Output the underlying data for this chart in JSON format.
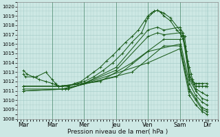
{
  "title": "",
  "xlabel": "Pression niveau de la mer( hPa )",
  "ylabel": "",
  "ylim": [
    1008,
    1020.5
  ],
  "xlim": [
    -0.1,
    6.2
  ],
  "yticks": [
    1008,
    1009,
    1010,
    1011,
    1012,
    1013,
    1014,
    1015,
    1016,
    1017,
    1018,
    1019,
    1020
  ],
  "xtick_labels": [
    "Mar",
    "Mar",
    "Mer",
    "Jeu",
    "Ven",
    "Sam",
    "Dir"
  ],
  "xtick_positions": [
    0.1,
    1.0,
    2.0,
    3.0,
    4.0,
    5.0,
    5.85
  ],
  "bg_color": "#cde8e4",
  "grid_color": "#a0c8c4",
  "line_color": "#1a5c1a",
  "series": [
    [
      0.1,
      1012.8,
      0.15,
      1012.5,
      0.5,
      1012.5,
      0.8,
      1013.0,
      1.0,
      1012.2,
      1.1,
      1011.8,
      1.2,
      1011.5,
      1.3,
      1011.5,
      1.5,
      1011.5,
      1.7,
      1011.8,
      1.9,
      1012.0,
      2.1,
      1012.5,
      2.3,
      1013.0,
      2.5,
      1013.5,
      2.7,
      1014.2,
      2.9,
      1014.8,
      3.1,
      1015.5,
      3.3,
      1016.2,
      3.5,
      1016.8,
      3.7,
      1017.5,
      3.9,
      1018.5,
      4.0,
      1019.0,
      4.1,
      1019.3,
      4.2,
      1019.5,
      4.3,
      1019.6,
      4.4,
      1019.4,
      4.5,
      1019.0,
      4.7,
      1018.5,
      4.9,
      1017.5,
      5.0,
      1017.2,
      5.05,
      1016.8,
      5.1,
      1016.5,
      5.15,
      1015.8,
      5.2,
      1015.2,
      5.25,
      1014.2,
      5.3,
      1013.5,
      5.35,
      1012.8,
      5.4,
      1012.2,
      5.45,
      1011.8,
      5.5,
      1011.5,
      5.6,
      1011.5,
      5.7,
      1011.5,
      5.8,
      1011.5,
      5.85,
      1011.5
    ],
    [
      0.1,
      1013.2,
      0.2,
      1012.8,
      0.4,
      1012.5,
      0.6,
      1012.2,
      0.8,
      1012.0,
      1.0,
      1011.8,
      1.2,
      1011.5,
      1.5,
      1011.5,
      1.8,
      1011.8,
      2.0,
      1012.0,
      2.3,
      1012.5,
      2.6,
      1013.2,
      2.9,
      1014.0,
      3.2,
      1015.0,
      3.5,
      1016.2,
      3.8,
      1017.2,
      4.0,
      1018.8,
      4.2,
      1019.5,
      4.3,
      1019.6,
      4.5,
      1019.3,
      4.7,
      1018.8,
      5.0,
      1017.5,
      5.1,
      1017.0,
      5.15,
      1016.8,
      5.3,
      1012.8,
      5.4,
      1012.0,
      5.5,
      1011.8,
      5.6,
      1011.8,
      5.7,
      1011.8,
      5.85,
      1011.8
    ],
    [
      0.1,
      1011.5,
      1.2,
      1011.5,
      2.0,
      1011.8,
      3.0,
      1013.5,
      4.0,
      1017.5,
      4.3,
      1017.8,
      4.5,
      1017.5,
      5.0,
      1017.8,
      5.1,
      1017.2,
      5.3,
      1012.5,
      5.5,
      1011.2,
      5.7,
      1010.8,
      5.85,
      1010.5
    ],
    [
      0.1,
      1011.5,
      1.2,
      1011.5,
      2.0,
      1011.8,
      3.0,
      1013.2,
      4.0,
      1016.8,
      4.3,
      1017.2,
      4.5,
      1017.0,
      5.0,
      1017.2,
      5.1,
      1016.8,
      5.3,
      1012.2,
      5.5,
      1011.0,
      5.7,
      1010.2,
      5.85,
      1010.0
    ],
    [
      0.1,
      1011.5,
      1.3,
      1011.5,
      2.5,
      1012.0,
      3.5,
      1014.0,
      4.5,
      1016.5,
      5.0,
      1016.5,
      5.3,
      1011.8,
      5.5,
      1010.5,
      5.7,
      1009.8,
      5.85,
      1009.5
    ],
    [
      0.1,
      1011.2,
      1.3,
      1011.2,
      3.0,
      1012.5,
      4.0,
      1015.2,
      5.0,
      1016.0,
      5.3,
      1011.2,
      5.5,
      1010.2,
      5.7,
      1009.2,
      5.85,
      1009.0
    ],
    [
      0.1,
      1011.0,
      1.4,
      1011.2,
      3.5,
      1013.0,
      4.5,
      1015.8,
      5.0,
      1015.8,
      5.3,
      1011.0,
      5.5,
      1010.0,
      5.7,
      1009.0,
      5.85,
      1008.8
    ],
    [
      0.1,
      1011.0,
      1.5,
      1011.2,
      4.0,
      1014.0,
      5.0,
      1015.5,
      5.3,
      1010.5,
      5.5,
      1009.5,
      5.7,
      1008.8,
      5.85,
      1008.5
    ]
  ],
  "marker": "+",
  "markersize": 2.5,
  "linewidth": 0.75,
  "xlabel_fontsize": 6.5,
  "ytick_fontsize": 5.0,
  "xtick_fontsize": 6.0
}
